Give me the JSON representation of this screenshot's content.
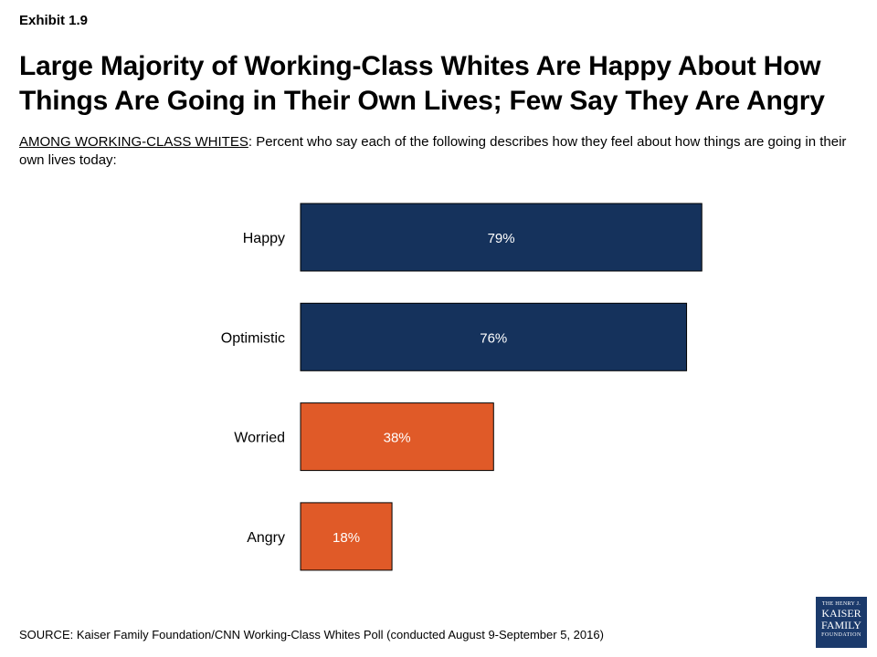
{
  "header": {
    "exhibit": "Exhibit 1.9",
    "title": "Large Majority of Working-Class Whites Are Happy About How Things Are Going in Their Own Lives; Few Say They Are Angry",
    "subtitle_lead": "AMONG WORKING-CLASS WHITES",
    "subtitle_rest": ": Percent who say each of the following describes how they feel about how things are going in their own lives today:"
  },
  "chart_data": {
    "type": "bar",
    "orientation": "horizontal",
    "categories": [
      "Happy",
      "Optimistic",
      "Worried",
      "Angry"
    ],
    "values": [
      79,
      76,
      38,
      18
    ],
    "data_labels": [
      "79%",
      "76%",
      "38%",
      "18%"
    ],
    "colors": [
      "#15325c",
      "#15325c",
      "#e05a28",
      "#e05a28"
    ],
    "xlim": [
      0,
      100
    ],
    "grid": false,
    "legend": "none"
  },
  "footer": {
    "source": "SOURCE: Kaiser Family Foundation/CNN Working-Class Whites Poll (conducted August 9-September 5, 2016)"
  },
  "logo": {
    "line1": "THE HENRY J.",
    "line2": "KAISER",
    "line3": "FAMILY",
    "line4": "FOUNDATION",
    "color": "#1b3a6b"
  }
}
